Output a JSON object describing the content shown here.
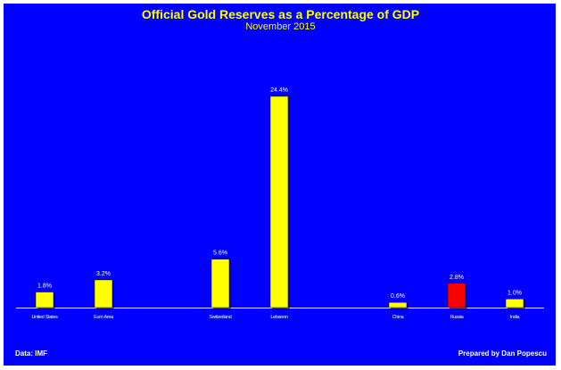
{
  "chart_data": {
    "type": "bar",
    "title": "Official Gold Reserves as a Percentage of GDP",
    "subtitle": "November 2015",
    "categories": [
      "United States",
      "Euro Area",
      "Switzerland",
      "Lebanon",
      "China",
      "Russia",
      "India"
    ],
    "values": [
      1.8,
      3.2,
      5.6,
      24.4,
      0.6,
      2.8,
      1.0
    ],
    "value_labels": [
      "1.8%",
      "3.2%",
      "5.6%",
      "24.4%",
      "0.6%",
      "2.8%",
      "1.0%"
    ],
    "colors": [
      "#ffff00",
      "#ffff00",
      "#ffff00",
      "#ffff00",
      "#ffff00",
      "#ff0000",
      "#ffff00"
    ],
    "ylim": [
      0,
      25
    ],
    "grid": false,
    "legend": "none",
    "background_color": "#0000ff",
    "axis_color": "#ffffff"
  },
  "footer": {
    "source": "Data: IMF",
    "credit": "Prepared by Dan Popescu"
  }
}
